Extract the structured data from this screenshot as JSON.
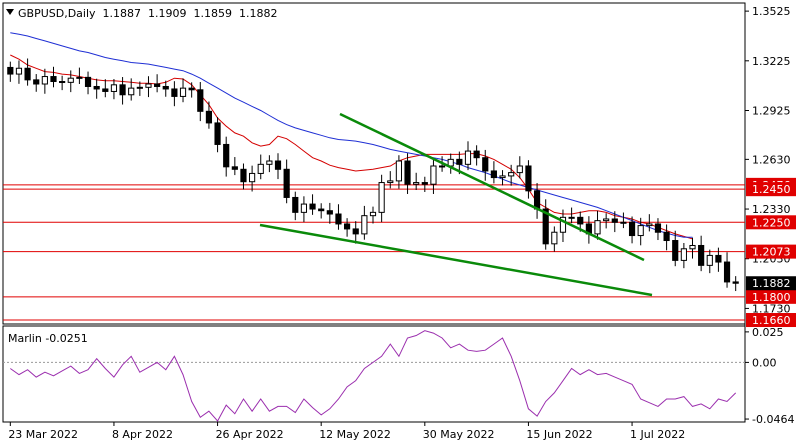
{
  "header": {
    "symbol_line": "GBPUSD,Daily  1.1887  1.1909  1.1859  1.1882"
  },
  "chart_data": [
    {
      "type": "candlestick",
      "title": "GBPUSD,Daily",
      "ohlc_label": "1.1887  1.1909  1.1859  1.1882",
      "x_ticks": [
        "23 Mar 2022",
        "8 Apr 2022",
        "26 Apr 2022",
        "12 May 2022",
        "30 May 2022",
        "15 Jun 2022",
        "1 Jul 2022"
      ],
      "y_ticks": [
        "1.3525",
        "1.3225",
        "1.2925",
        "1.2630",
        "1.2330",
        "1.2030",
        "1.1730"
      ],
      "ylim": [
        1.1642,
        1.3568
      ],
      "current_price": {
        "label": "1.1882",
        "value": 1.1882
      },
      "levels": [
        {
          "label": "1.2476",
          "value": 1.2476
        },
        {
          "label": "1.2450",
          "value": 1.245
        },
        {
          "label": "1.2250",
          "value": 1.225
        },
        {
          "label": "1.2073",
          "value": 1.2073
        },
        {
          "label": "1.1800",
          "value": 1.18
        },
        {
          "label": "1.1660",
          "value": 1.166
        }
      ],
      "close": [
        1.3145,
        1.318,
        1.311,
        1.3085,
        1.313,
        1.31,
        1.3095,
        1.312,
        1.3125,
        1.307,
        1.3055,
        1.304,
        1.308,
        1.302,
        1.306,
        1.3065,
        1.3085,
        1.307,
        1.3055,
        1.301,
        1.306,
        1.305,
        1.292,
        1.285,
        1.272,
        1.2585,
        1.257,
        1.2495,
        1.2545,
        1.26,
        1.262,
        1.257,
        1.24,
        1.231,
        1.236,
        1.233,
        1.232,
        1.23,
        1.224,
        1.221,
        1.218,
        1.229,
        1.231,
        1.249,
        1.25,
        1.262,
        1.248,
        1.249,
        1.248,
        1.259,
        1.259,
        1.263,
        1.26,
        1.268,
        1.264,
        1.256,
        1.252,
        1.253,
        1.255,
        1.259,
        1.244,
        1.233,
        1.212,
        1.219,
        1.228,
        1.228,
        1.224,
        1.218,
        1.226,
        1.227,
        1.225,
        1.225,
        1.217,
        1.223,
        1.224,
        1.219,
        1.214,
        1.202,
        1.209,
        1.211,
        1.199,
        1.205,
        1.201,
        1.189,
        1.1882
      ],
      "moving_averages": [
        {
          "color": "#d40000",
          "values": [
            1.326,
            1.3235,
            1.32,
            1.318,
            1.316,
            1.3155,
            1.3145,
            1.314,
            1.313,
            1.312,
            1.311,
            1.3105,
            1.3105,
            1.31,
            1.3095,
            1.309,
            1.309,
            1.3085,
            1.3095,
            1.312,
            1.3115,
            1.308,
            1.302,
            1.296,
            1.288,
            1.283,
            1.279,
            1.277,
            1.273,
            1.271,
            1.272,
            1.277,
            1.2755,
            1.272,
            1.268,
            1.264,
            1.262,
            1.2595,
            1.258,
            1.257,
            1.256,
            1.2565,
            1.257,
            1.258,
            1.259,
            1.262,
            1.264,
            1.265,
            1.266,
            1.266,
            1.266,
            1.266,
            1.266,
            1.2665,
            1.2665,
            1.265,
            1.263,
            1.26,
            1.257,
            1.252,
            1.245,
            1.237,
            1.234,
            1.231,
            1.23,
            1.23,
            1.231,
            1.232,
            1.232,
            1.231,
            1.229,
            1.228,
            1.227,
            1.225,
            1.224,
            1.222,
            1.22,
            1.218,
            1.2165,
            1.215
          ]
        },
        {
          "color": "#1f2fd4",
          "values": [
            1.3395,
            1.3385,
            1.3375,
            1.336,
            1.3345,
            1.333,
            1.3315,
            1.33,
            1.3285,
            1.3275,
            1.326,
            1.3245,
            1.3235,
            1.3225,
            1.3215,
            1.321,
            1.3205,
            1.3195,
            1.3185,
            1.3175,
            1.3165,
            1.3145,
            1.312,
            1.309,
            1.306,
            1.303,
            1.3,
            1.2975,
            1.295,
            1.2925,
            1.2895,
            1.2865,
            1.284,
            1.282,
            1.2805,
            1.279,
            1.2775,
            1.276,
            1.275,
            1.2745,
            1.274,
            1.273,
            1.272,
            1.2705,
            1.269,
            1.268,
            1.267,
            1.266,
            1.265,
            1.264,
            1.263,
            1.2615,
            1.26,
            1.258,
            1.2565,
            1.255,
            1.253,
            1.251,
            1.249,
            1.2475,
            1.246,
            1.2445,
            1.243,
            1.2415,
            1.24,
            1.2385,
            1.237,
            1.2355,
            1.234,
            1.232,
            1.23,
            1.228,
            1.226,
            1.224,
            1.222,
            1.22,
            1.2185,
            1.217,
            1.216,
            1.216
          ]
        }
      ]
    },
    {
      "type": "line",
      "title": "Marlin -0.0251",
      "y_ticks": [
        "0.025",
        "0.00",
        "-0.0464"
      ],
      "ylim": [
        -0.048,
        0.029
      ],
      "series": [
        {
          "color": "#9b2fae",
          "values": [
            -0.005,
            -0.01,
            -0.006,
            -0.012,
            -0.008,
            -0.011,
            -0.007,
            -0.003,
            -0.009,
            -0.006,
            0.003,
            -0.005,
            -0.012,
            -0.002,
            0.005,
            -0.008,
            -0.004,
            0.0,
            -0.006,
            0.005,
            -0.01,
            -0.032,
            -0.045,
            -0.04,
            -0.048,
            -0.035,
            -0.042,
            -0.03,
            -0.04,
            -0.03,
            -0.04,
            -0.036,
            -0.036,
            -0.041,
            -0.03,
            -0.037,
            -0.043,
            -0.038,
            -0.03,
            -0.02,
            -0.015,
            -0.005,
            0.0,
            0.005,
            0.015,
            0.005,
            0.02,
            0.022,
            0.026,
            0.024,
            0.02,
            0.012,
            0.015,
            0.01,
            0.009,
            0.01,
            0.015,
            0.02,
            0.005,
            -0.015,
            -0.038,
            -0.044,
            -0.032,
            -0.025,
            -0.015,
            -0.005,
            -0.01,
            -0.006,
            -0.01,
            -0.009,
            -0.012,
            -0.015,
            -0.018,
            -0.03,
            -0.033,
            -0.036,
            -0.03,
            -0.03,
            -0.028,
            -0.036,
            -0.034,
            -0.038,
            -0.03,
            -0.032,
            -0.025
          ]
        }
      ]
    }
  ],
  "channel_lines": {
    "color": "#0a8a0a"
  }
}
